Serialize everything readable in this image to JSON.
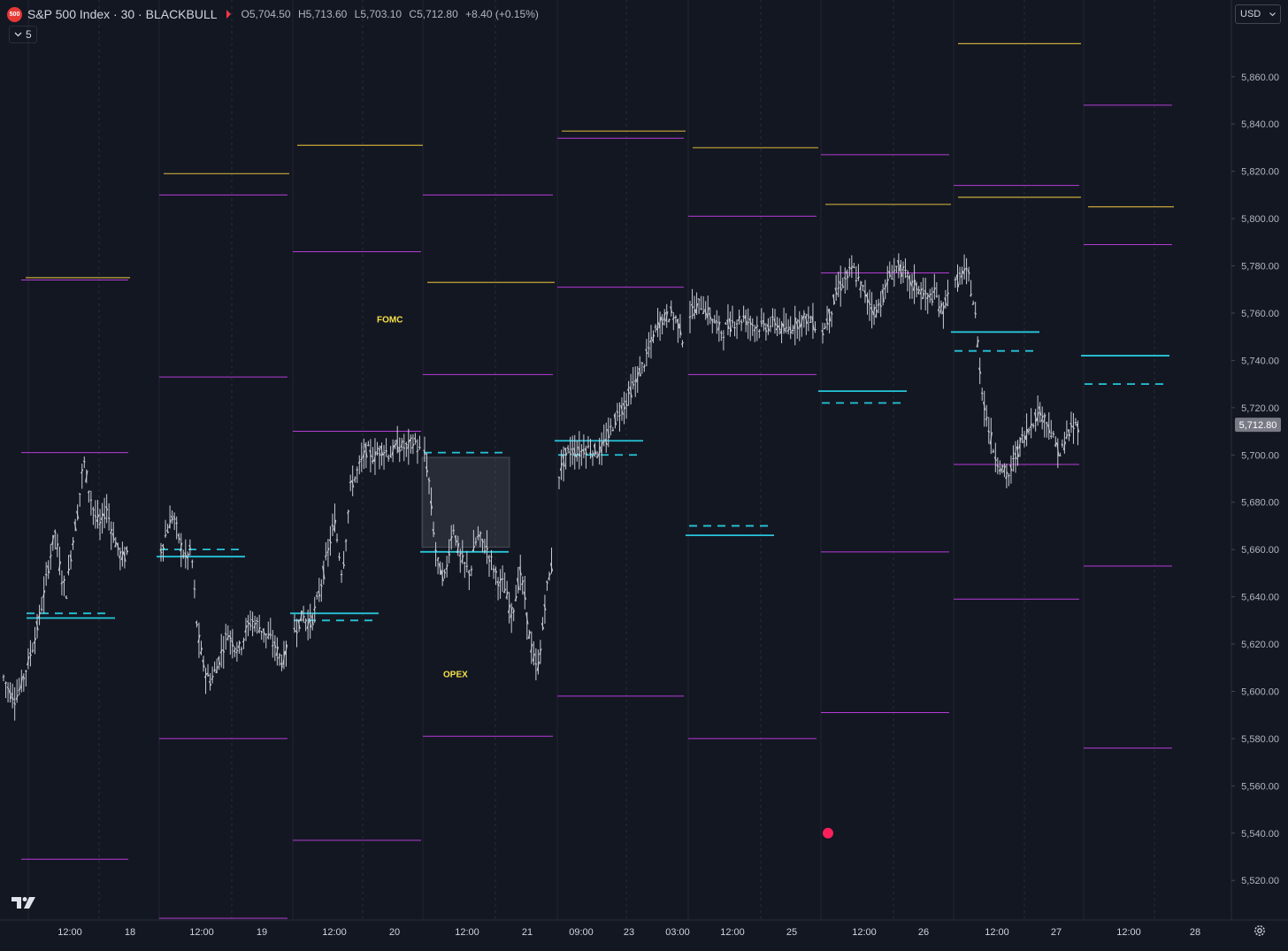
{
  "header": {
    "badge": "500",
    "title": "S&P 500 Index · 30 · BLACKBULL",
    "open": "O5,704.50",
    "high": "H5,713.60",
    "low": "L5,703.10",
    "close": "C5,712.80",
    "change": "+8.40 (+0.15%)"
  },
  "indicator_toggle": "5",
  "currency": "USD",
  "colors": {
    "background": "#131722",
    "candles": "#c8ccd4",
    "magenta": "#b53cd6",
    "gold": "#c8a93a",
    "cyan": "#26c6da",
    "label_yellow": "#f5e04a",
    "price_tag": "#787b86",
    "red_dot": "#ff1f5a"
  },
  "icons": [
    "tradingview-logo-icon",
    "chevron-down-icon",
    "settings-gear-icon",
    "flag-icon"
  ],
  "chart_data": {
    "type": "candlestick",
    "x_tick_labels": [
      "12:00",
      "18",
      "12:00",
      "19",
      "12:00",
      "20",
      "12:00",
      "21",
      "09:00",
      "23",
      "03:00",
      "12:00",
      "25",
      "12:00",
      "26",
      "12:00",
      "27",
      "12:00",
      "28"
    ],
    "y_tick_labels": [
      "5,860.00",
      "5,840.00",
      "5,820.00",
      "5,800.00",
      "5,780.00",
      "5,760.00",
      "5,740.00",
      "5,720.00",
      "5,700.00",
      "5,680.00",
      "5,660.00",
      "5,640.00",
      "5,620.00",
      "5,600.00",
      "5,580.00",
      "5,560.00",
      "5,540.00",
      "5,520.00"
    ],
    "ylim": [
      5504,
      5876
    ],
    "last_price_label": "5,712.80",
    "last_price": 5712.8,
    "annotations": [
      {
        "text": "FOMC",
        "x_session": 2.3,
        "y": 5756
      },
      {
        "text": "OPEX",
        "x_session": 2.8,
        "y": 5606
      }
    ],
    "marker": {
      "x_session": 6.05,
      "y": 5540
    },
    "sessions": [
      {
        "magenta": [
          5774,
          5701,
          5529
        ],
        "gold": [
          5775
        ],
        "cyan_solid": 5631,
        "cyan_dash": 5633,
        "path": [
          5606,
          5600,
          5597,
          5602,
          5610,
          5618,
          5628,
          5640,
          5655,
          5668,
          5650,
          5642,
          5662,
          5676,
          5698,
          5685,
          5674,
          5670,
          5678,
          5668,
          5660,
          5656,
          5660
        ]
      },
      {
        "magenta": [
          5810,
          5733,
          5580,
          5504
        ],
        "gold": [
          5819
        ],
        "cyan_solid": 5657,
        "cyan_dash": 5660,
        "path": [
          5660,
          5668,
          5675,
          5664,
          5656,
          5660,
          5625,
          5611,
          5604,
          5609,
          5617,
          5625,
          5620,
          5618,
          5626,
          5630,
          5628,
          5625,
          5622,
          5618,
          5612,
          5620
        ]
      },
      {
        "magenta": [
          5786,
          5710,
          5537
        ],
        "gold": [
          5831
        ],
        "cyan_solid": 5633,
        "cyan_dash": 5630,
        "path": [
          5626,
          5632,
          5628,
          5640,
          5656,
          5672,
          5649,
          5686,
          5694,
          5702,
          5699,
          5703,
          5700,
          5704,
          5703,
          5706,
          5700
        ]
      },
      {
        "magenta": [
          5810,
          5734,
          5581
        ],
        "gold": [
          5773
        ],
        "cyan_solid": 5659,
        "cyan_dash": 5701,
        "box": [
          5661,
          5699
        ],
        "path": [
          5700,
          5690,
          5670,
          5655,
          5650,
          5648,
          5662,
          5670,
          5660,
          5655,
          5652,
          5650,
          5662,
          5666,
          5662,
          5660,
          5655,
          5650,
          5646,
          5645,
          5638,
          5632,
          5642,
          5650,
          5640,
          5625,
          5615,
          5608,
          5620,
          5640,
          5650,
          5655
        ]
      },
      {
        "magenta": [
          5834,
          5771,
          5598
        ],
        "gold": [
          5837
        ],
        "cyan_solid": 5706,
        "cyan_dash": 5700,
        "path": [
          5692,
          5700,
          5702,
          5701,
          5703,
          5702,
          5701,
          5705,
          5712,
          5718,
          5722,
          5728,
          5734,
          5740,
          5748,
          5756,
          5758,
          5760,
          5756,
          5746
        ]
      },
      {
        "magenta": [
          5801,
          5734,
          5580
        ],
        "gold": [
          5830
        ],
        "cyan_solid": 5666,
        "cyan_dash": 5670,
        "path": [
          5760,
          5764,
          5758,
          5752,
          5756,
          5758,
          5755,
          5754,
          5756,
          5752,
          5756,
          5758,
          5754
        ]
      },
      {
        "magenta": [
          5827,
          5777,
          5659,
          5591
        ],
        "gold": [
          5806
        ],
        "cyan_solid": 5727,
        "cyan_dash": 5722,
        "path": [
          5752,
          5760,
          5770,
          5774,
          5779,
          5772,
          5766,
          5760,
          5767,
          5776,
          5780,
          5776,
          5772,
          5770,
          5766,
          5768,
          5760,
          5774
        ]
      },
      {
        "magenta": [
          5814,
          5696,
          5639
        ],
        "gold": [
          5809,
          5874
        ],
        "cyan_solid": 5752,
        "cyan_dash": 5744,
        "path": [
          5772,
          5777,
          5776,
          5760,
          5728,
          5712,
          5700,
          5695,
          5690,
          5698,
          5706,
          5710,
          5716,
          5718,
          5714,
          5706,
          5700,
          5708,
          5712,
          5713
        ]
      },
      {
        "magenta": [
          5848,
          5789,
          5653,
          5576
        ],
        "gold": [
          5805
        ],
        "cyan_solid": 5742,
        "cyan_dash": 5730
      }
    ]
  }
}
